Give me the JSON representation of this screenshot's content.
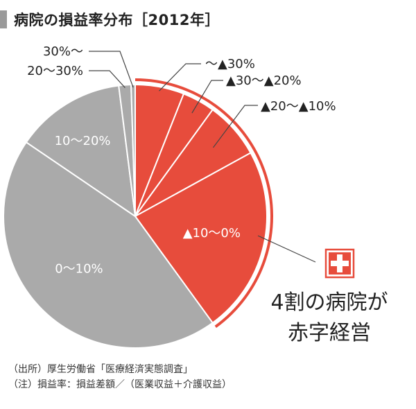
{
  "title": "病院の損益率分布［2012年］",
  "chart_data": {
    "type": "pie",
    "title": "病院の損益率分布［2012年］",
    "slices": [
      {
        "label": "〜▲30%",
        "value": 6.0,
        "color": "#e74c3c",
        "group": "deficit"
      },
      {
        "label": "▲30〜▲20%",
        "value": 4.0,
        "color": "#e74c3c",
        "group": "deficit"
      },
      {
        "label": "▲20〜▲10%",
        "value": 7.0,
        "color": "#e74c3c",
        "group": "deficit"
      },
      {
        "label": "▲10〜0%",
        "value": 23.0,
        "color": "#e74c3c",
        "group": "deficit"
      },
      {
        "label": "0〜10%",
        "value": 44.5,
        "color": "#aaaaaa",
        "group": "surplus"
      },
      {
        "label": "10〜20%",
        "value": 13.5,
        "color": "#aaaaaa",
        "group": "surplus"
      },
      {
        "label": "20〜30%",
        "value": 1.5,
        "color": "#aaaaaa",
        "group": "surplus"
      },
      {
        "label": "30%〜",
        "value": 0.5,
        "color": "#aaaaaa",
        "group": "surplus"
      }
    ],
    "colors": {
      "deficit": "#e74c3c",
      "surplus": "#aaaaaa",
      "divider": "#ffffff",
      "leader": "#444444"
    }
  },
  "callout": {
    "line1": "4割の病院が",
    "line2": "赤字経営",
    "icon": "red-cross-icon",
    "icon_color": "#e74c3c"
  },
  "notes": {
    "source": "（出所）厚生労働省「医療経済実態調査」",
    "note": "（注）損益率：損益差額／（医業収益＋介護収益）"
  }
}
